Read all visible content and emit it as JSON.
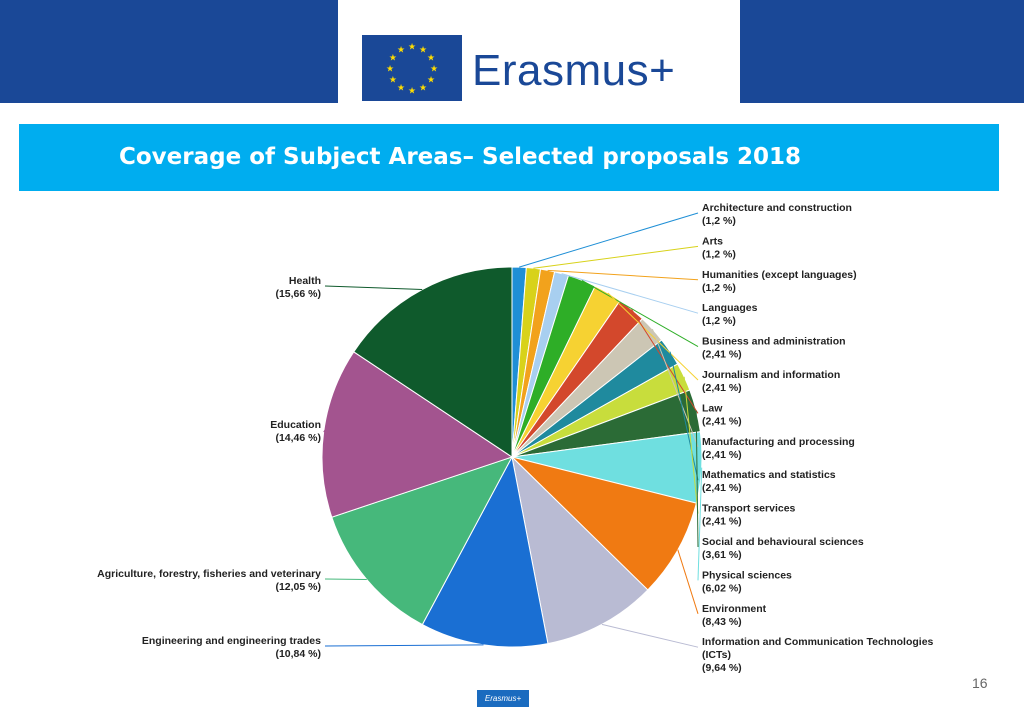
{
  "header": {
    "brand": "Erasmus+"
  },
  "slide": {
    "title": "Coverage of Subject Areas– Selected proposals 2018",
    "page_number": "16"
  },
  "footer": {
    "brand": "Erasmus+"
  },
  "colors": {
    "band": "#1a4897",
    "title_bar": "#00adef"
  },
  "chart_data": {
    "type": "pie",
    "title": "",
    "slices": [
      {
        "name": "Architecture and construction",
        "label": "(1,2 %)",
        "value": 1.2,
        "color": "#1f8fd6"
      },
      {
        "name": "Arts",
        "label": "(1,2 %)",
        "value": 1.2,
        "color": "#d8d21a"
      },
      {
        "name": "Humanities (except languages)",
        "label": "(1,2 %)",
        "value": 1.2,
        "color": "#f2a21c"
      },
      {
        "name": "Languages",
        "label": "(1,2 %)",
        "value": 1.2,
        "color": "#a8cff0"
      },
      {
        "name": "Business and administration",
        "label": "(2,41 %)",
        "value": 2.41,
        "color": "#2eae27"
      },
      {
        "name": "Journalism and information",
        "label": "(2,41 %)",
        "value": 2.41,
        "color": "#f6d232"
      },
      {
        "name": "Law",
        "label": "(2,41 %)",
        "value": 2.41,
        "color": "#d3482c"
      },
      {
        "name": "Manufacturing and processing",
        "label": "(2,41 %)",
        "value": 2.41,
        "color": "#ccc6b4"
      },
      {
        "name": "Mathematics and statistics",
        "label": "(2,41 %)",
        "value": 2.41,
        "color": "#1f8a9e"
      },
      {
        "name": "Transport services",
        "label": "(2,41 %)",
        "value": 2.41,
        "color": "#c8dd3c"
      },
      {
        "name": "Social and behavioural sciences",
        "label": "(3,61 %)",
        "value": 3.61,
        "color": "#2b6b36"
      },
      {
        "name": "Physical sciences",
        "label": "(6,02 %)",
        "value": 6.02,
        "color": "#6fdfe0"
      },
      {
        "name": "Environment",
        "label": "(8,43 %)",
        "value": 8.43,
        "color": "#f07a12"
      },
      {
        "name": "Information and Communication Technologies (ICTs)",
        "label": "(9,64 %)",
        "value": 9.64,
        "color": "#b9bbd3"
      },
      {
        "name": "Engineering and engineering trades",
        "label": "(10,84 %)",
        "value": 10.84,
        "color": "#1a6fd3"
      },
      {
        "name": "Agriculture, forestry, fisheries and veterinary",
        "label": "(12,05 %)",
        "value": 12.05,
        "color": "#46b87b"
      },
      {
        "name": "Education",
        "label": "(14,46 %)",
        "value": 14.46,
        "color": "#a3548f"
      },
      {
        "name": "Health",
        "label": "(15,66 %)",
        "value": 15.66,
        "color": "#0f5a2c"
      }
    ]
  }
}
